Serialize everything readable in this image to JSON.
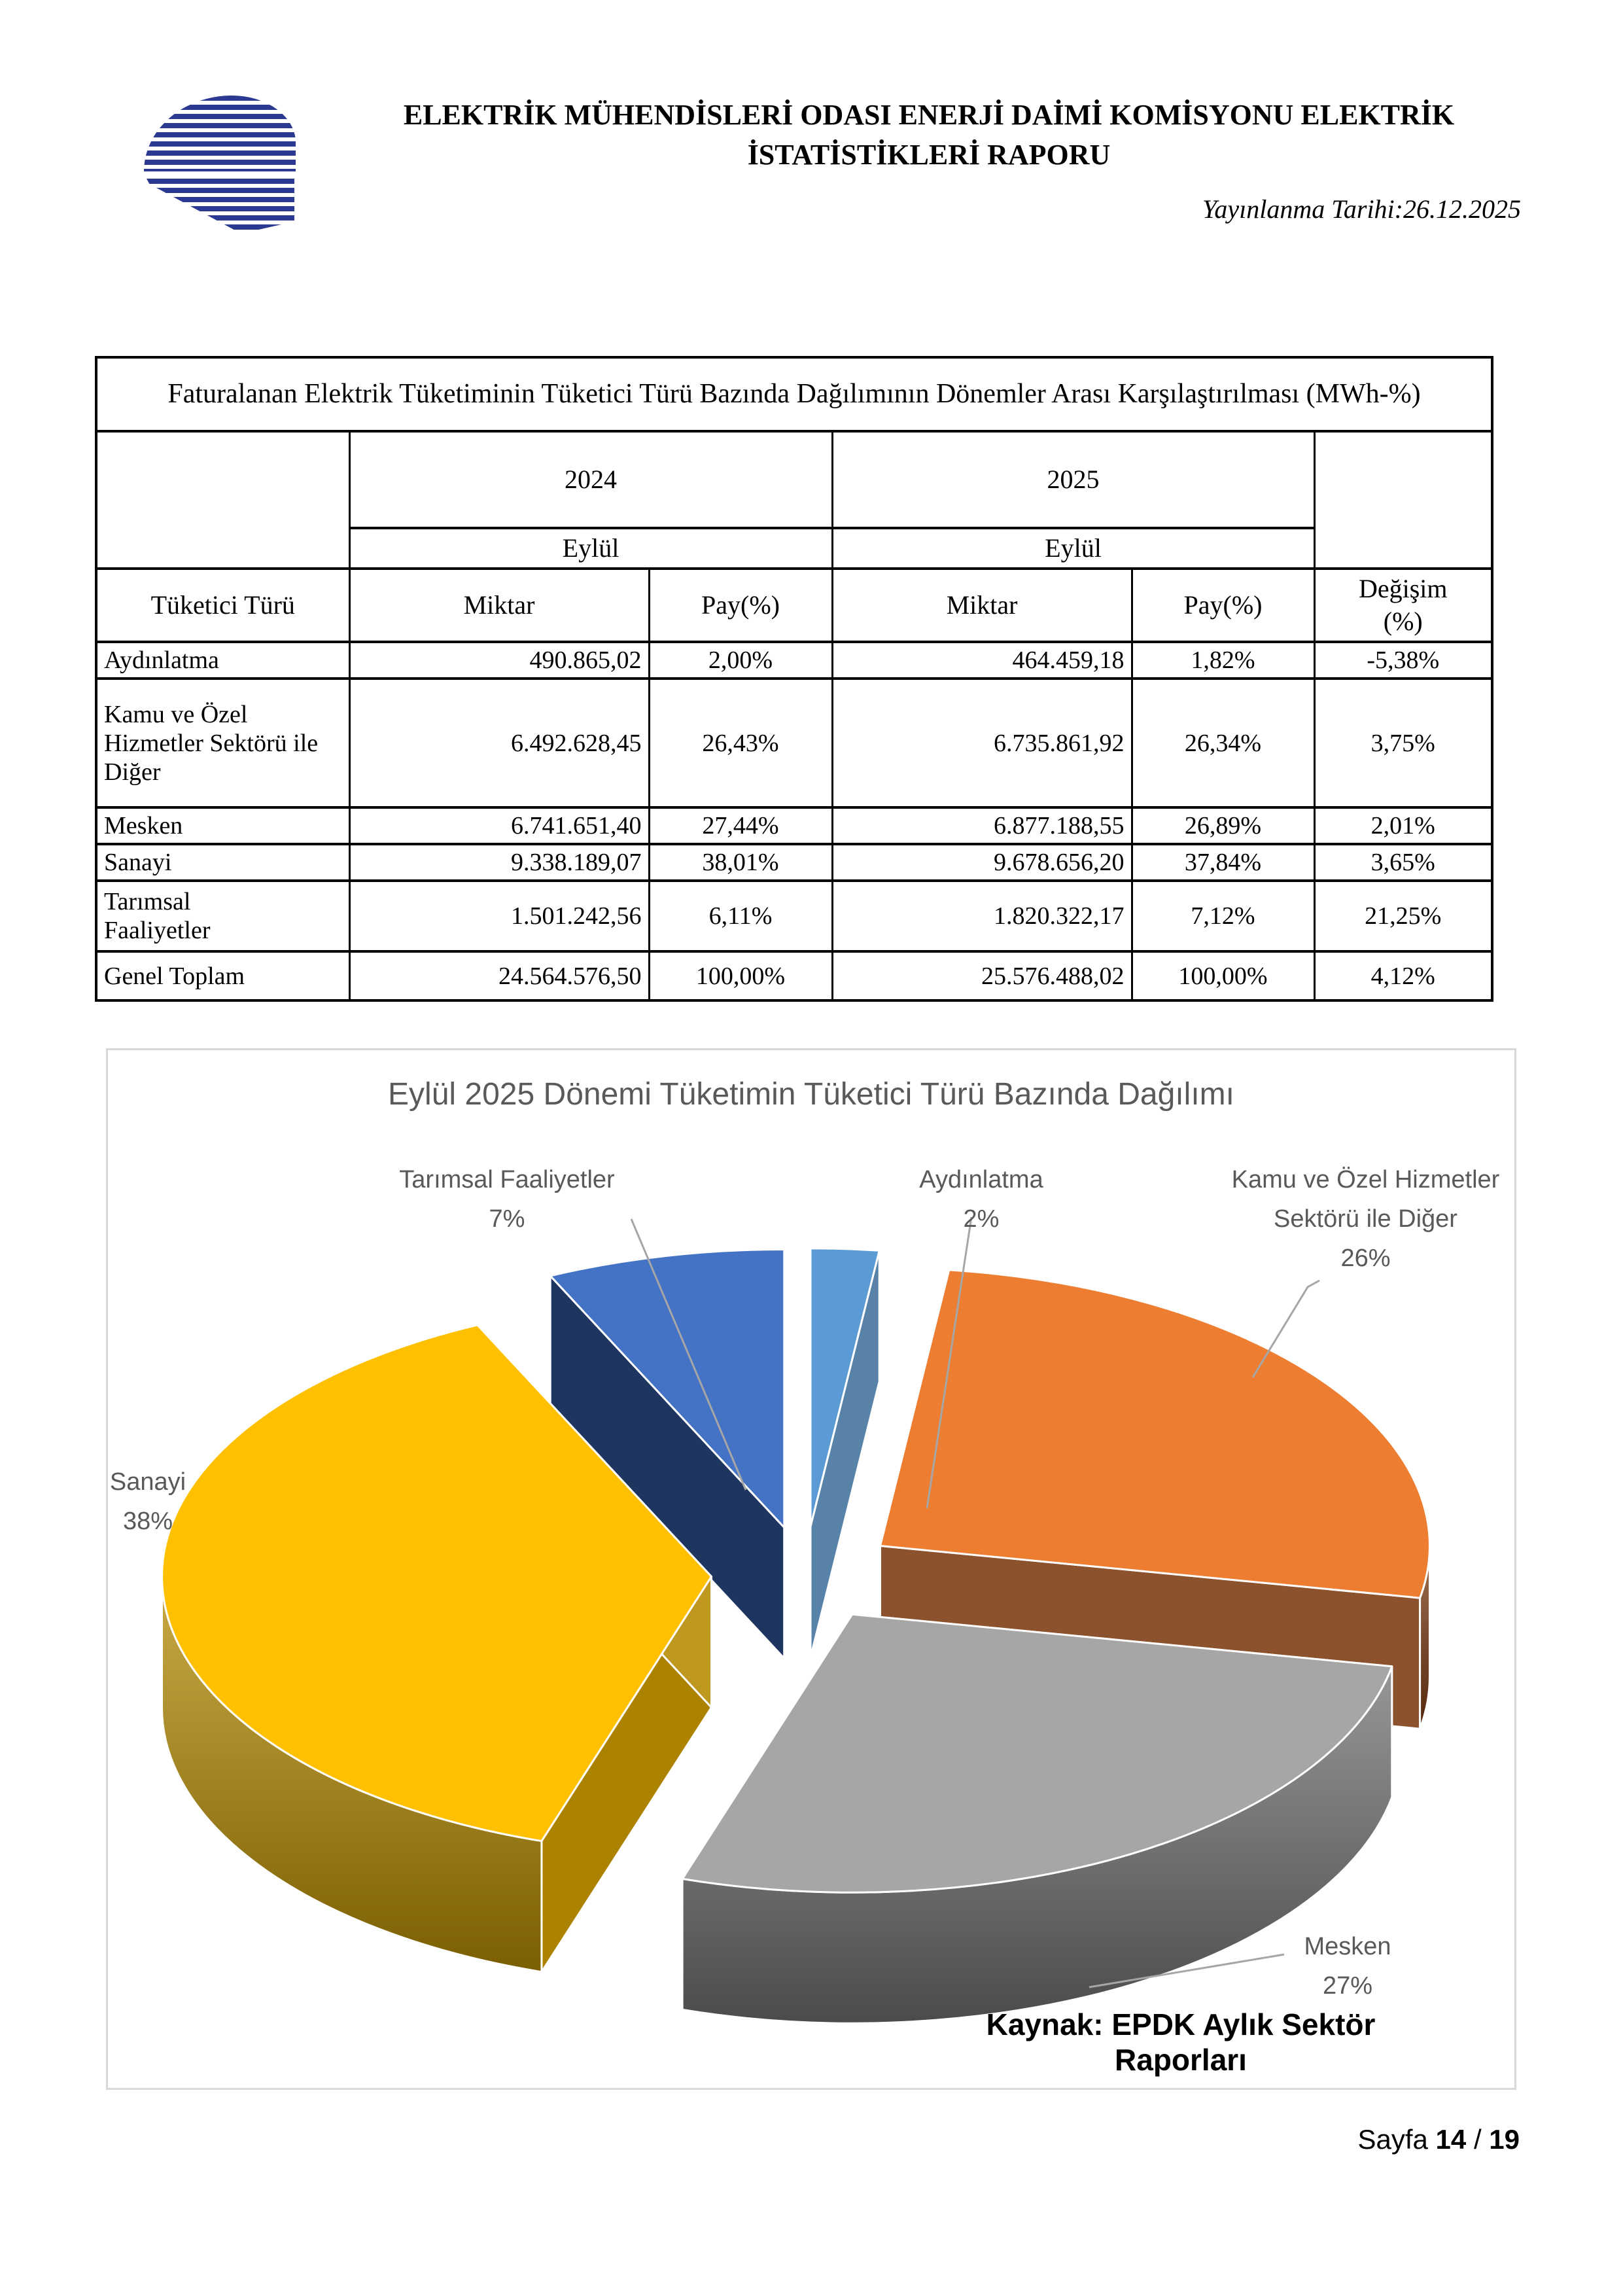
{
  "header": {
    "title": "ELEKTRİK MÜHENDİSLERİ ODASI ENERJİ DAİMİ KOMİSYONU ELEKTRİK İSTATİSTİKLERİ RAPORU",
    "publish_date": "Yayınlanma Tarihi:26.12.2025"
  },
  "table": {
    "title": "Faturalanan Elektrik Tüketiminin Tüketici Türü Bazında Dağılımının Dönemler Arası Karşılaştırılması (MWh-%)",
    "year_2024": "2024",
    "year_2025": "2025",
    "month_2024": "Eylül",
    "month_2025": "Eylül",
    "headers": {
      "consumer_type": "Tüketici Türü",
      "amount_2024": "Miktar",
      "share_2024": "Pay(%)",
      "amount_2025": "Miktar",
      "share_2025": "Pay(%)",
      "change": "Değişim (%)"
    },
    "rows": [
      {
        "type": "Aydınlatma",
        "amount_2024": "490.865,02",
        "share_2024": "2,00%",
        "amount_2025": "464.459,18",
        "share_2025": "1,82%",
        "change": "-5,38%"
      },
      {
        "type": "Kamu ve Özel Hizmetler Sektörü ile Diğer",
        "amount_2024": "6.492.628,45",
        "share_2024": "26,43%",
        "amount_2025": "6.735.861,92",
        "share_2025": "26,34%",
        "change": "3,75%"
      },
      {
        "type": "Mesken",
        "amount_2024": "6.741.651,40",
        "share_2024": "27,44%",
        "amount_2025": "6.877.188,55",
        "share_2025": "26,89%",
        "change": "2,01%"
      },
      {
        "type": "Sanayi",
        "amount_2024": "9.338.189,07",
        "share_2024": "38,01%",
        "amount_2025": "9.678.656,20",
        "share_2025": "37,84%",
        "change": "3,65%"
      },
      {
        "type": "Tarımsal Faaliyetler",
        "amount_2024": "1.501.242,56",
        "share_2024": "6,11%",
        "amount_2025": "1.820.322,17",
        "share_2025": "7,12%",
        "change": "21,25%"
      }
    ],
    "total_row": {
      "type": "Genel Toplam",
      "amount_2024": "24.564.576,50",
      "share_2024": "100,00%",
      "amount_2025": "25.576.488,02",
      "share_2025": "100,00%",
      "change": "4,12%"
    }
  },
  "chart_data": {
    "type": "pie",
    "style": "3d-exploded",
    "title": "Eylül 2025 Dönemi Tüketimin Tüketici Türü Bazında Dağılımı",
    "source_note": "Kaynak: EPDK Aylık Sektör Raporları",
    "categories": [
      "Aydınlatma",
      "Kamu ve Özel Hizmetler Sektörü ile Diğer",
      "Mesken",
      "Sanayi",
      "Tarımsal Faaliyetler"
    ],
    "values": [
      2,
      26,
      27,
      38,
      7
    ],
    "unit": "%",
    "colors": [
      "#5B9BD5",
      "#ED7D31",
      "#A6A6A6",
      "#FFC000",
      "#4472C4"
    ],
    "side_colors": [
      "#41719C",
      "#7B3A10",
      "#6E6E6E",
      "#B58A00",
      "#1F3864"
    ],
    "labels": [
      {
        "line1": "Aydınlatma",
        "pct": "2%"
      },
      {
        "line1": "Kamu ve Özel Hizmetler",
        "line2": "Sektörü ile Diğer",
        "pct": "26%"
      },
      {
        "line1": "Mesken",
        "pct": "27%"
      },
      {
        "line1": "Sanayi",
        "pct": "38%"
      },
      {
        "line1": "Tarımsal Faaliyetler",
        "pct": "7%"
      }
    ]
  },
  "footer": {
    "label": "Sayfa",
    "current": "14",
    "separator": "/",
    "total": "19"
  }
}
